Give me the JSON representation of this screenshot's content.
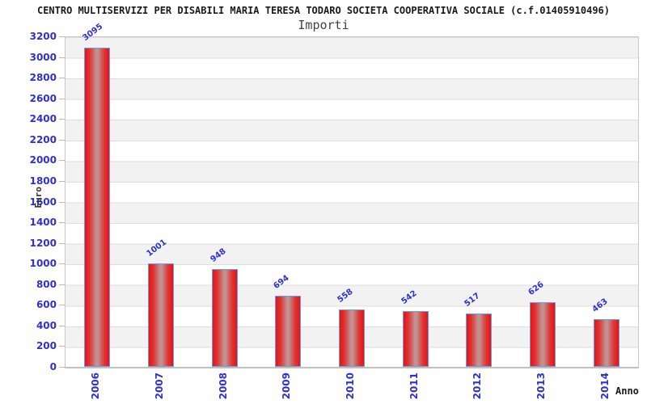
{
  "header": {
    "title": "CENTRO MULTISERVIZI PER DISABILI MARIA TERESA TODARO SOCIETA COOPERATIVA SOCIALE (c.f.01405910496)",
    "subtitle": "Importi"
  },
  "axes": {
    "y_label": "Euro",
    "x_label": "Anno"
  },
  "colors": {
    "tick_label_blue": "#3030d0",
    "bar_red_edge": "#ea1111",
    "bar_red_center": "#c39191",
    "bar_border_blue": "#64a0e6",
    "band_gray": "#f2f2f2",
    "band_white": "#ffffff",
    "gridline": "#dedede",
    "plot_border": "#c8c8c8",
    "title_black": "#1a1a1a",
    "subtitle_gray": "#444444"
  },
  "chart_data": {
    "type": "bar",
    "title": "Importi",
    "categories": [
      "2006",
      "2007",
      "2008",
      "2009",
      "2010",
      "2011",
      "2012",
      "2013",
      "2014"
    ],
    "values": [
      3095,
      1001,
      948,
      694,
      558,
      542,
      517,
      626,
      463
    ],
    "xlabel": "Anno",
    "ylabel": "Euro",
    "ylim": [
      0,
      3200
    ],
    "ytick_step": 200,
    "yticks": [
      0,
      200,
      400,
      600,
      800,
      1000,
      1200,
      1400,
      1600,
      1800,
      2000,
      2200,
      2400,
      2600,
      2800,
      3000,
      3200
    ],
    "grid": "horizontal-banded",
    "legend": "none",
    "value_labels_rotation_deg": -37,
    "xtick_rotation_deg": -90
  }
}
